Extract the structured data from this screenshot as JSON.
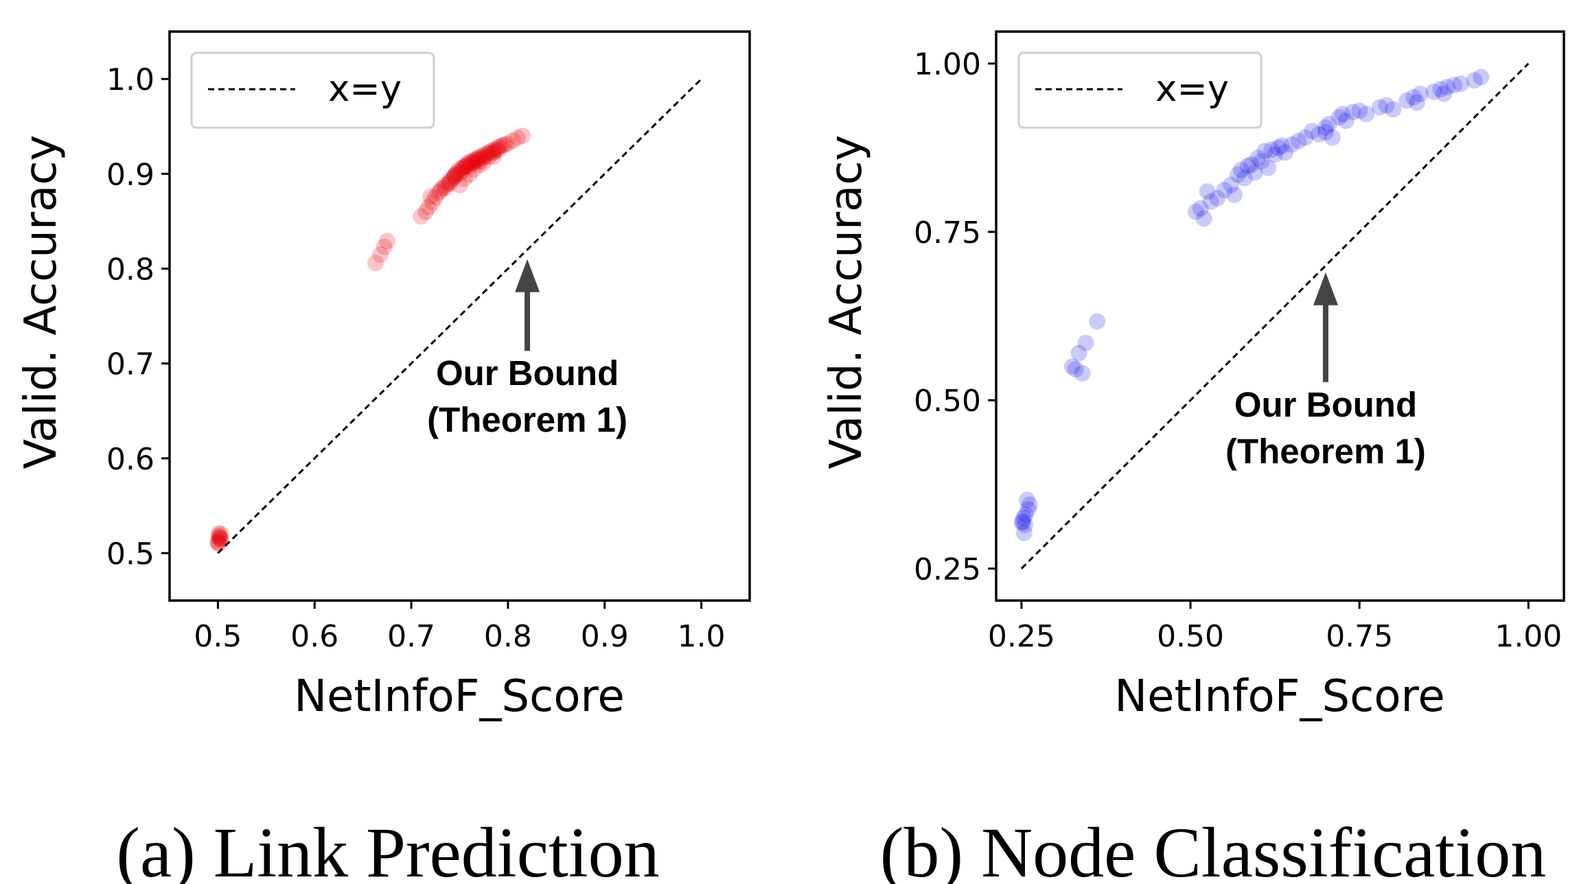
{
  "chart_data": [
    {
      "type": "scatter",
      "xlabel": "NetInfoF_Score",
      "ylabel": "Valid. Accuracy",
      "caption": "(a) Link Prediction",
      "xlim": [
        0.45,
        1.05
      ],
      "ylim": [
        0.45,
        1.05
      ],
      "xticks": [
        0.5,
        0.6,
        0.7,
        0.8,
        0.9,
        1.0
      ],
      "yticks": [
        0.5,
        0.6,
        0.7,
        0.8,
        0.9,
        1.0
      ],
      "tick_labels": [
        "0.5",
        "0.6",
        "0.7",
        "0.8",
        "0.9",
        "1.0"
      ],
      "grid": false,
      "legend": {
        "label": "x=y",
        "placement": "upper left"
      },
      "reference_line": {
        "label": "x=y",
        "from": [
          0.5,
          0.5
        ],
        "to": [
          1.0,
          1.0
        ],
        "style": "dashed",
        "color": "#000000"
      },
      "annotation": {
        "line1": "Our Bound",
        "line2": "(Theorem 1)",
        "arrow_target": [
          0.82,
          0.81
        ],
        "text_at": [
          0.82,
          0.68
        ]
      },
      "point_color": "#e8000b",
      "point_alpha": 0.22,
      "series": [
        {
          "x": [
            0.501,
            0.502,
            0.5,
            0.503,
            0.501,
            0.502,
            0.5,
            0.501,
            0.503,
            0.502,
            0.663,
            0.668,
            0.672,
            0.675,
            0.71,
            0.715,
            0.718,
            0.72,
            0.722,
            0.725,
            0.728,
            0.73,
            0.732,
            0.735,
            0.738,
            0.74,
            0.742,
            0.744,
            0.745,
            0.746,
            0.748,
            0.75,
            0.75,
            0.752,
            0.753,
            0.755,
            0.756,
            0.757,
            0.758,
            0.76,
            0.76,
            0.762,
            0.763,
            0.765,
            0.765,
            0.767,
            0.768,
            0.77,
            0.77,
            0.772,
            0.773,
            0.775,
            0.776,
            0.778,
            0.78,
            0.78,
            0.782,
            0.784,
            0.785,
            0.786,
            0.788,
            0.79,
            0.79,
            0.792,
            0.795,
            0.797,
            0.8,
            0.805,
            0.81,
            0.815,
            0.745,
            0.755,
            0.765,
            0.775,
            0.76,
            0.75,
            0.77,
            0.74,
            0.735,
            0.785
          ],
          "y": [
            0.51,
            0.515,
            0.512,
            0.52,
            0.518,
            0.516,
            0.511,
            0.521,
            0.514,
            0.517,
            0.806,
            0.815,
            0.823,
            0.829,
            0.855,
            0.86,
            0.865,
            0.876,
            0.87,
            0.875,
            0.88,
            0.882,
            0.885,
            0.888,
            0.89,
            0.892,
            0.895,
            0.896,
            0.898,
            0.9,
            0.902,
            0.9,
            0.905,
            0.903,
            0.906,
            0.908,
            0.907,
            0.91,
            0.909,
            0.912,
            0.908,
            0.913,
            0.911,
            0.915,
            0.912,
            0.914,
            0.916,
            0.917,
            0.913,
            0.918,
            0.916,
            0.92,
            0.918,
            0.921,
            0.922,
            0.918,
            0.924,
            0.922,
            0.925,
            0.923,
            0.926,
            0.928,
            0.925,
            0.929,
            0.93,
            0.931,
            0.932,
            0.935,
            0.938,
            0.94,
            0.898,
            0.895,
            0.905,
            0.912,
            0.899,
            0.888,
            0.909,
            0.89,
            0.885,
            0.918
          ]
        }
      ]
    },
    {
      "type": "scatter",
      "xlabel": "NetInfoF_Score",
      "ylabel": "Valid. Accuracy",
      "caption": "(b) Node Classification",
      "xlim": [
        0.2125,
        1.0525
      ],
      "ylim": [
        0.2025,
        1.0475
      ],
      "xticks": [
        0.25,
        0.5,
        0.75,
        1.0
      ],
      "yticks": [
        0.25,
        0.5,
        0.75,
        1.0
      ],
      "tick_labels": [
        "0.25",
        "0.50",
        "0.75",
        "1.00"
      ],
      "grid": false,
      "legend": {
        "label": "x=y",
        "placement": "upper left"
      },
      "reference_line": {
        "label": "x=y",
        "from": [
          0.25,
          0.25
        ],
        "to": [
          1.0,
          1.0
        ],
        "style": "dashed",
        "color": "#000000"
      },
      "annotation": {
        "line1": "Our Bound",
        "line2": "(Theorem 1)",
        "arrow_target": [
          0.7,
          0.69
        ],
        "text_at": [
          0.7,
          0.48
        ]
      },
      "point_color": "#1010e8",
      "point_alpha": 0.22,
      "series": [
        {
          "x": [
            0.252,
            0.255,
            0.258,
            0.262,
            0.254,
            0.256,
            0.253,
            0.26,
            0.251,
            0.325,
            0.33,
            0.335,
            0.34,
            0.345,
            0.362,
            0.508,
            0.515,
            0.52,
            0.525,
            0.53,
            0.54,
            0.55,
            0.56,
            0.565,
            0.57,
            0.575,
            0.58,
            0.585,
            0.59,
            0.595,
            0.6,
            0.605,
            0.61,
            0.615,
            0.62,
            0.625,
            0.63,
            0.635,
            0.64,
            0.65,
            0.66,
            0.67,
            0.68,
            0.69,
            0.7,
            0.7,
            0.705,
            0.71,
            0.72,
            0.725,
            0.73,
            0.74,
            0.75,
            0.76,
            0.78,
            0.79,
            0.8,
            0.82,
            0.83,
            0.835,
            0.84,
            0.86,
            0.87,
            0.875,
            0.88,
            0.89,
            0.9,
            0.92,
            0.93
          ],
          "y": [
            0.32,
            0.315,
            0.352,
            0.345,
            0.303,
            0.33,
            0.325,
            0.338,
            0.318,
            0.55,
            0.546,
            0.57,
            0.54,
            0.585,
            0.617,
            0.78,
            0.785,
            0.77,
            0.81,
            0.795,
            0.8,
            0.812,
            0.82,
            0.805,
            0.835,
            0.842,
            0.83,
            0.848,
            0.85,
            0.838,
            0.86,
            0.855,
            0.87,
            0.845,
            0.872,
            0.865,
            0.875,
            0.878,
            0.868,
            0.88,
            0.885,
            0.89,
            0.9,
            0.895,
            0.905,
            0.898,
            0.91,
            0.89,
            0.92,
            0.925,
            0.915,
            0.928,
            0.93,
            0.925,
            0.935,
            0.938,
            0.932,
            0.945,
            0.95,
            0.942,
            0.955,
            0.958,
            0.962,
            0.955,
            0.965,
            0.968,
            0.97,
            0.975,
            0.98
          ]
        }
      ]
    }
  ]
}
